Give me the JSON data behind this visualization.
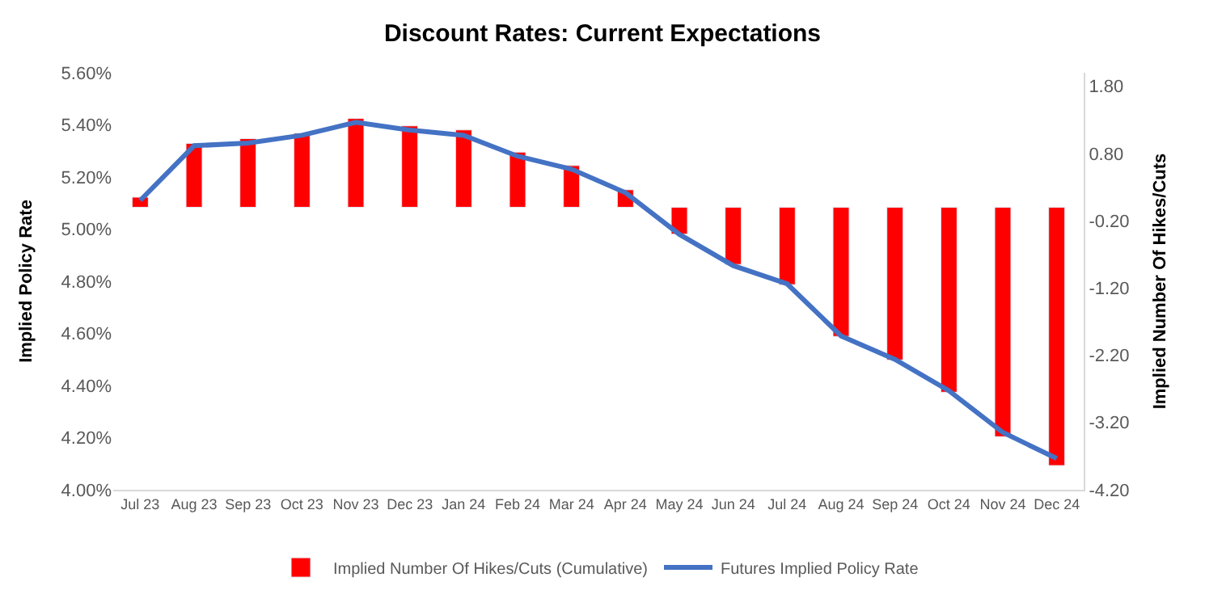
{
  "chart_data": {
    "type": "bar",
    "title": "Discount Rates: Current Expectations",
    "ylabel": "Implied Policy Rate",
    "y2label": "Implied Number Of Hikes/Cuts",
    "categories": [
      "Jul 23",
      "Aug 23",
      "Sep 23",
      "Oct 23",
      "Nov 23",
      "Dec 23",
      "Jan 24",
      "Feb 24",
      "Mar 24",
      "Apr 24",
      "May 24",
      "Jun 24",
      "Jul 24",
      "Aug 24",
      "Sep 24",
      "Oct 24",
      "Nov 24",
      "Dec 24"
    ],
    "series": [
      {
        "name": "Implied Number Of Hikes/Cuts (Cumulative)",
        "axis": "y2",
        "color": "#ff0000",
        "values": [
          0.15,
          0.95,
          1.02,
          1.1,
          1.32,
          1.21,
          1.15,
          0.82,
          0.62,
          0.26,
          -0.4,
          -0.85,
          -1.15,
          -1.92,
          -2.27,
          -2.75,
          -3.41,
          -3.84
        ]
      },
      {
        "name": "Futures Implied Policy Rate",
        "type": "line",
        "color": "#4472c4",
        "values": [
          5.11,
          5.32,
          5.33,
          5.36,
          5.41,
          5.38,
          5.36,
          5.28,
          5.23,
          5.14,
          4.98,
          4.86,
          4.79,
          4.59,
          4.5,
          4.38,
          4.22,
          4.12
        ]
      }
    ],
    "ylim": [
      4.0,
      5.6
    ],
    "yticks": [
      {
        "value": 4.0,
        "label": "4.00%"
      },
      {
        "value": 4.2,
        "label": "4.20%"
      },
      {
        "value": 4.4,
        "label": "4.40%"
      },
      {
        "value": 4.6,
        "label": "4.60%"
      },
      {
        "value": 4.8,
        "label": "4.80%"
      },
      {
        "value": 5.0,
        "label": "5.00%"
      },
      {
        "value": 5.2,
        "label": "5.20%"
      },
      {
        "value": 5.4,
        "label": "5.40%"
      },
      {
        "value": 5.6,
        "label": "5.60%"
      }
    ],
    "y2lim": [
      -4.2,
      2.0
    ],
    "y2ticks": [
      {
        "value": -4.2,
        "label": "-4.20"
      },
      {
        "value": -3.2,
        "label": "-3.20"
      },
      {
        "value": -2.2,
        "label": "-2.20"
      },
      {
        "value": -1.2,
        "label": "-1.20"
      },
      {
        "value": -0.2,
        "label": "-0.20"
      },
      {
        "value": 0.8,
        "label": "0.80"
      },
      {
        "value": 1.8,
        "label": "1.80"
      }
    ],
    "legend": "bottom",
    "marker": "none",
    "line_style": "solid"
  }
}
